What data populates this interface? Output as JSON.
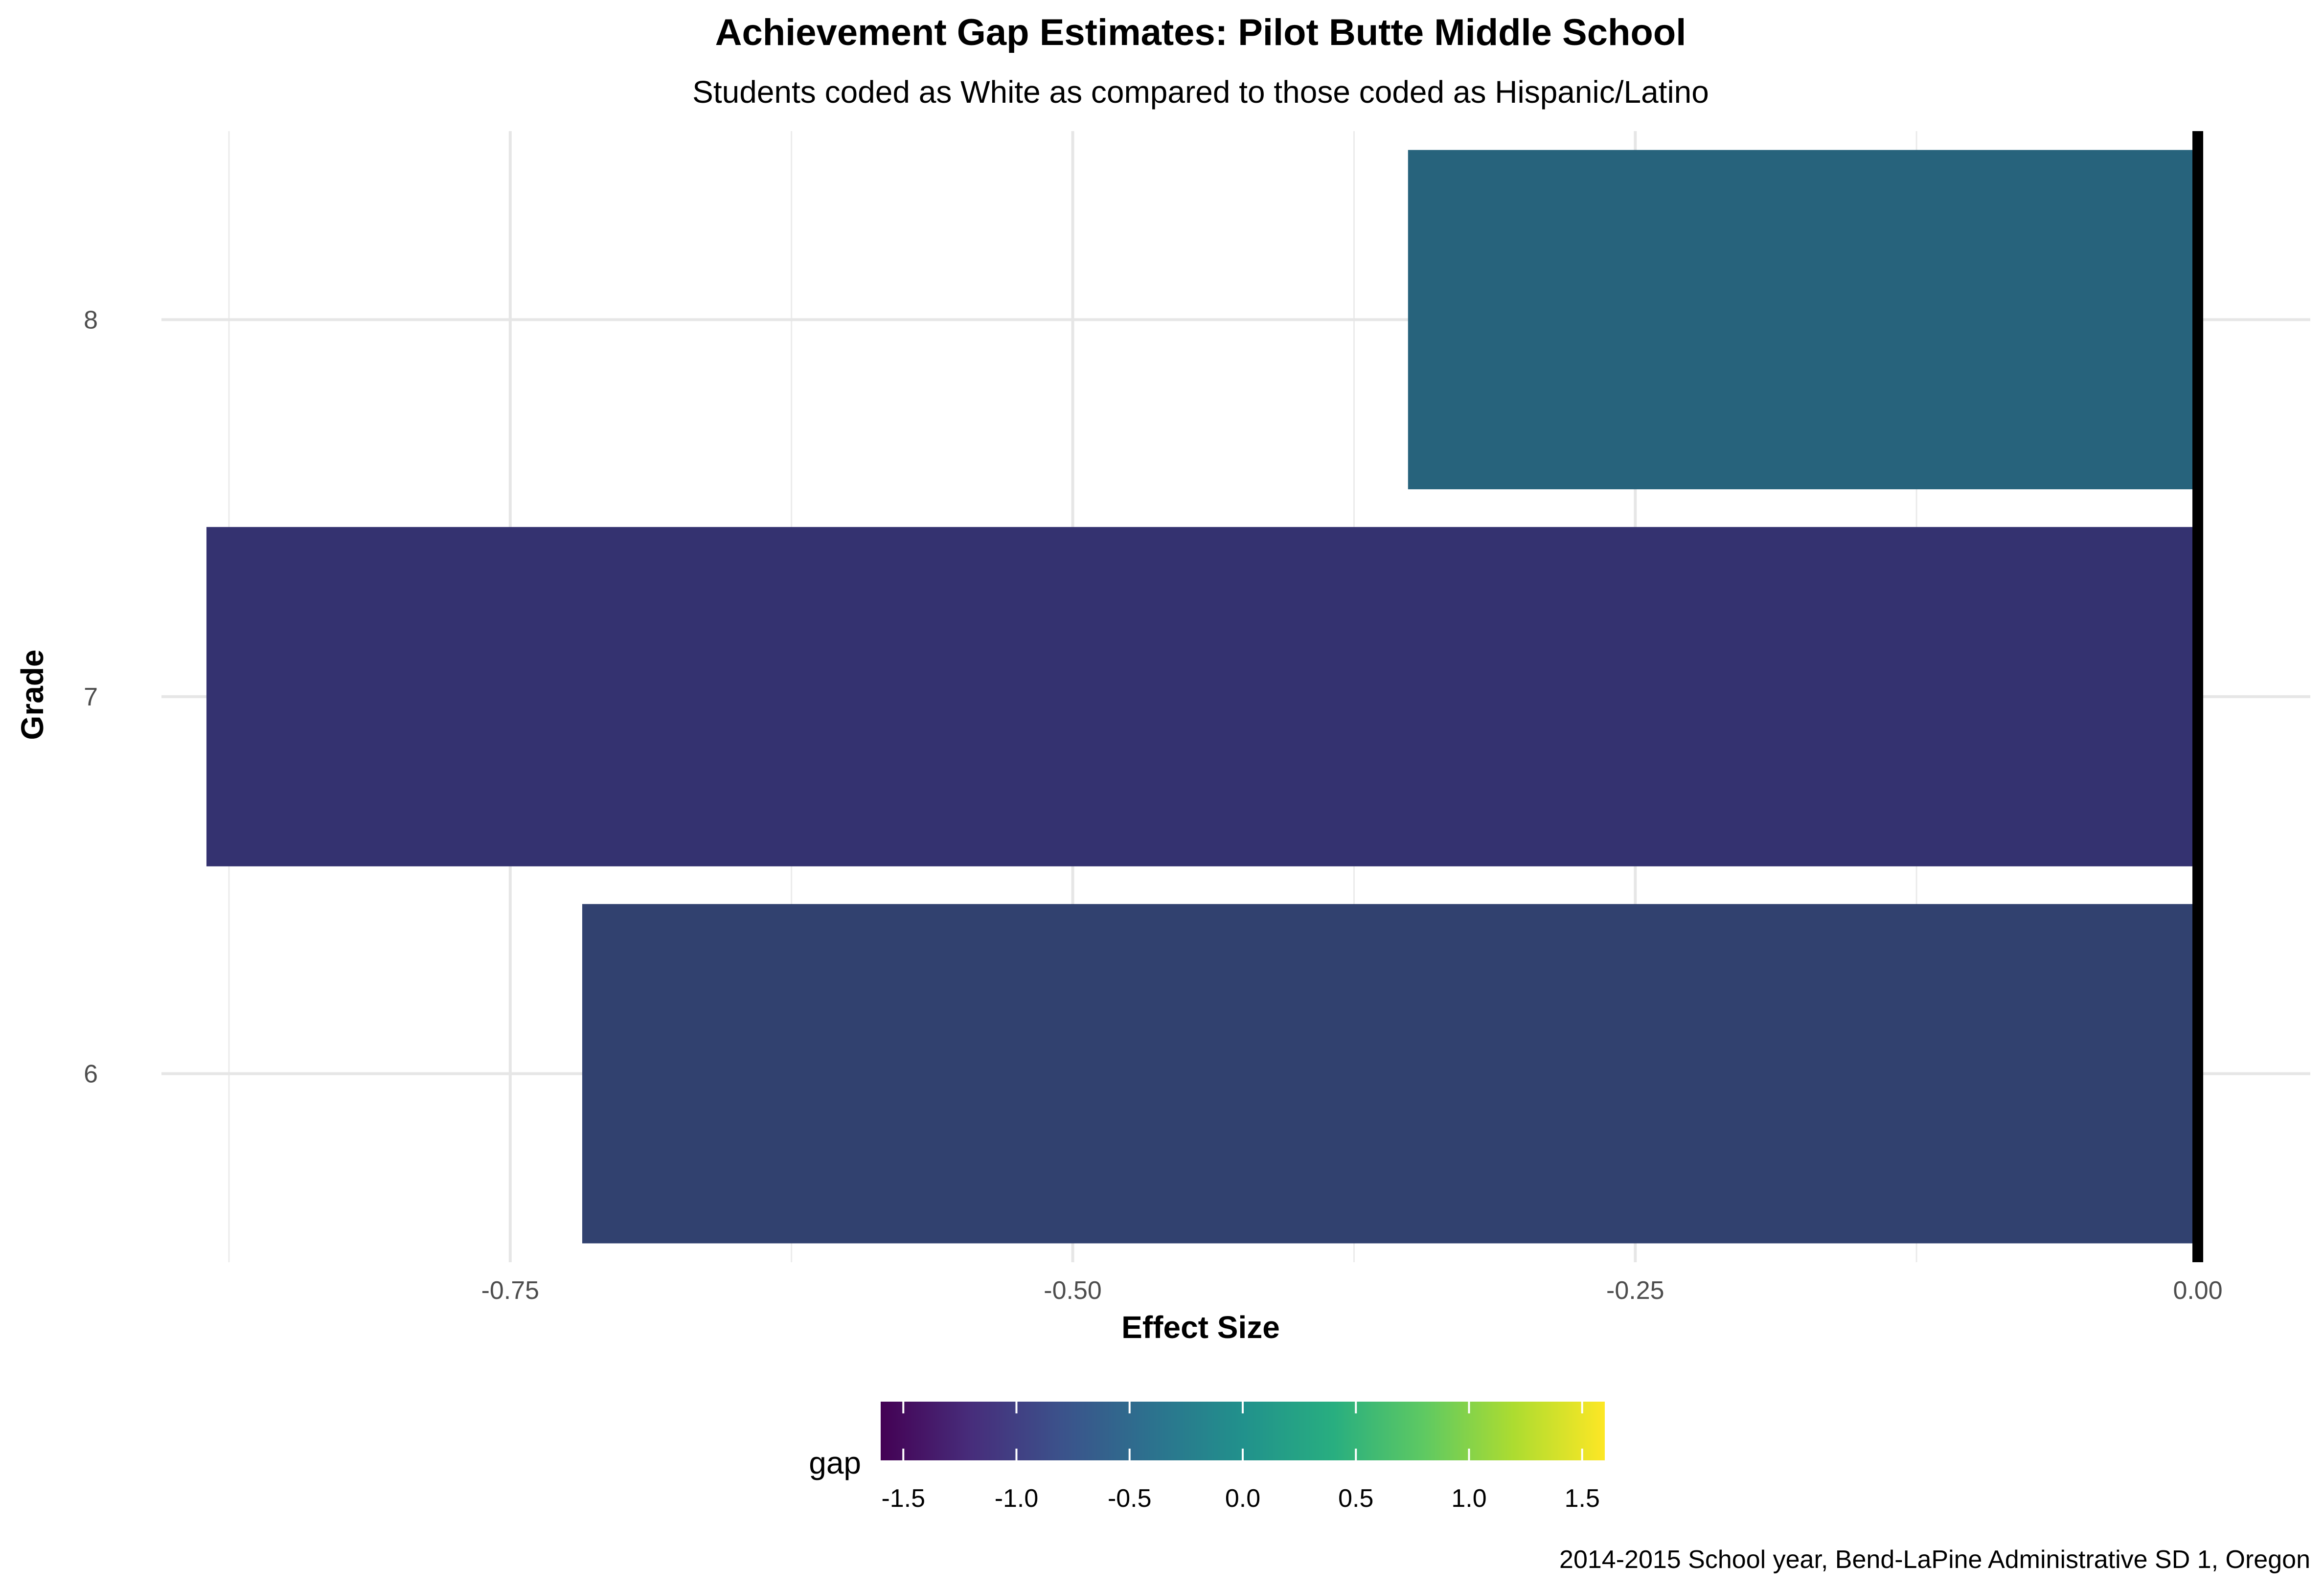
{
  "chart_data": {
    "type": "bar",
    "orientation": "horizontal",
    "title": "Achievement Gap Estimates: Pilot Butte Middle School",
    "subtitle": "Students coded as White as compared to those coded as Hispanic/Latino",
    "xlabel": "Effect Size",
    "ylabel": "Grade",
    "caption": "2014-2015 School year, Bend-LaPine Administrative SD 1, Oregon",
    "categories": [
      "6",
      "7",
      "8"
    ],
    "values": [
      -0.718,
      -0.885,
      -0.351
    ],
    "bar_colors": [
      "#31416F",
      "#343270",
      "#27637C"
    ],
    "xlim": [
      -0.905,
      0.05
    ],
    "x_ticks": [
      -0.75,
      -0.5,
      -0.25,
      0.0
    ],
    "x_tick_labels": [
      "-0.75",
      "-0.50",
      "-0.25",
      "0.00"
    ],
    "x_minor_ticks": [
      -0.875,
      -0.625,
      -0.375,
      -0.125
    ],
    "y_ticks": [
      "6",
      "7",
      "8"
    ],
    "reference_line_x": 0.0,
    "grid": true,
    "legend": {
      "title": "gap",
      "type": "colorbar",
      "placement": "bottom",
      "palette": "viridis",
      "range": [
        -1.6,
        1.6
      ],
      "tick_values": [
        -1.5,
        -1.0,
        -0.5,
        0.0,
        0.5,
        1.0,
        1.5
      ],
      "tick_labels": [
        "-1.5",
        "-1.0",
        "-0.5",
        "0.0",
        "0.5",
        "1.0",
        "1.5"
      ]
    }
  }
}
